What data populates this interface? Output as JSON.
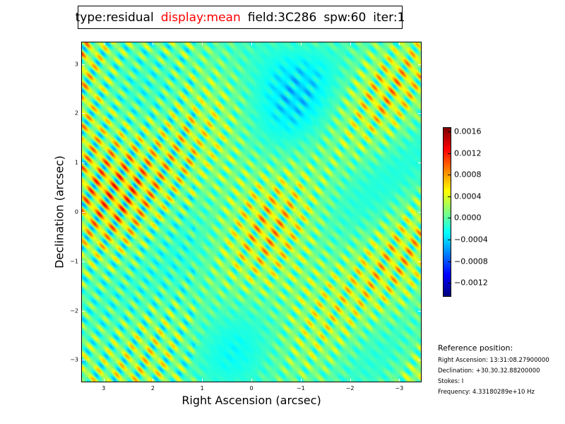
{
  "title": {
    "type": "type:residual",
    "display": "display:mean",
    "field": "field:3C286",
    "spw": "spw:60",
    "iter": "iter:1",
    "display_color": "#ff0000"
  },
  "chart_data": {
    "type": "heatmap",
    "colormap": "jet",
    "xlabel": "Right Ascension (arcsec)",
    "ylabel": "Declination (arcsec)",
    "xlim": [
      3.44,
      -3.44
    ],
    "ylim": [
      -3.44,
      3.44
    ],
    "xticks": [
      3,
      2,
      1,
      0,
      -1,
      -2,
      -3
    ],
    "xtick_labels": [
      "3",
      "2",
      "1",
      "0",
      "−1",
      "−2",
      "−3"
    ],
    "yticks": [
      3,
      2,
      1,
      0,
      -1,
      -2,
      -3
    ],
    "ytick_labels": [
      "3",
      "2",
      "1",
      "0",
      "−1",
      "−2",
      "−3"
    ],
    "colorbar": {
      "vmin": -0.00146,
      "vmax": 0.00168,
      "ticks": [
        0.0016,
        0.0012,
        0.0008,
        0.0004,
        0.0,
        -0.0004,
        -0.0008,
        -0.0012
      ],
      "tick_labels": [
        "0.0016",
        "0.0012",
        "0.0008",
        "0.0004",
        "0.0000",
        "−0.0004",
        "−0.0008",
        "−0.0012"
      ]
    }
  },
  "reference": {
    "heading": "Reference position:",
    "ra": "Right Ascension: 13:31:08.27900000",
    "dec": "Declination: +30.30.32.88200000",
    "stokes": "Stokes: I",
    "freq": "Frequency: 4.33180289e+10 Hz"
  }
}
